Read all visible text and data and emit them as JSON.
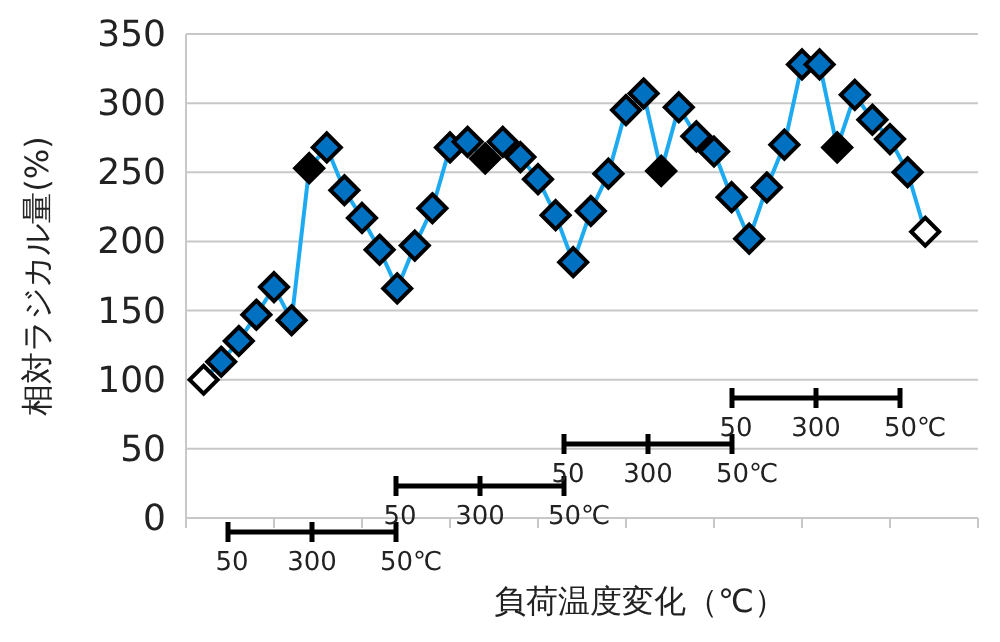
{
  "chart_data": {
    "type": "line",
    "ylabel": "相対ラジカル量(%)",
    "xlabel": "負荷温度変化（℃）",
    "categories": [
      null,
      null,
      null,
      null,
      null,
      null,
      null,
      null,
      null,
      null,
      null,
      null,
      null,
      null,
      null,
      null,
      null,
      null,
      null,
      null,
      null,
      null,
      null,
      null,
      null,
      null,
      null,
      null,
      null,
      null,
      null,
      null,
      null,
      null,
      null,
      null,
      null,
      null,
      null,
      null,
      null,
      null
    ],
    "series": [
      {
        "color": "#1eaaf0",
        "colors": [
          "#ffffff",
          "#0070c0",
          "#0070c0",
          "#0070c0",
          "#0070c0",
          "#0070c0",
          "#000000",
          "#0070c0",
          "#0070c0",
          "#0070c0",
          "#0070c0",
          "#0070c0",
          "#0070c0",
          "#0070c0",
          "#0070c0",
          "#0070c0",
          "#000000",
          "#0070c0",
          "#0070c0",
          "#0070c0",
          "#0070c0",
          "#0070c0",
          "#0070c0",
          "#0070c0",
          "#0070c0",
          "#0070c0",
          "#000000",
          "#0070c0",
          "#0070c0",
          "#0070c0",
          "#0070c0",
          "#0070c0",
          "#0070c0",
          "#0070c0",
          "#0070c0",
          "#0070c0",
          "#000000",
          "#0070c0",
          "#0070c0",
          "#0070c0",
          "#0070c0",
          "#ffffff"
        ],
        "values": [
          100,
          113,
          128,
          147,
          167,
          143,
          253,
          268,
          237,
          217,
          194,
          166,
          197,
          224,
          268,
          272,
          260,
          272,
          261,
          245,
          219,
          185,
          222,
          249,
          295,
          307,
          251,
          297,
          276,
          265,
          232,
          202,
          239,
          270,
          328,
          328,
          268,
          306,
          288,
          274,
          250,
          207
        ]
      }
    ],
    "ylim": [
      0,
      350
    ],
    "yticks": [
      0,
      50,
      100,
      150,
      200,
      250,
      300,
      350
    ],
    "grid": "y",
    "marker": "diamond",
    "line_style": "solid",
    "annotations": [
      "50",
      "300",
      "50℃",
      "50",
      "300",
      "50℃",
      "50",
      "300",
      "50℃",
      "50",
      "300",
      "50℃"
    ]
  }
}
